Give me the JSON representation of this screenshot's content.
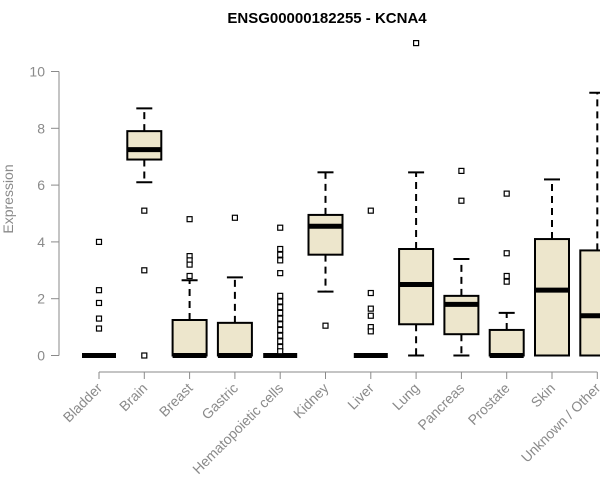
{
  "chart_data": {
    "type": "box",
    "title": "ENSG00000182255 - KCNA4",
    "xlabel": "",
    "ylabel": "Expression",
    "ylim": [
      0,
      10
    ],
    "yticks": [
      0,
      2,
      4,
      6,
      8,
      10
    ],
    "grid": false,
    "legend": "none",
    "colors": {
      "box_fill": "#ede6cc",
      "box_stroke": "#000000",
      "axis": "#8a8a8a"
    },
    "categories": [
      "Bladder",
      "Brain",
      "Breast",
      "Gastric",
      "Hematopoietic cells",
      "Kidney",
      "Liver",
      "Lung",
      "Pancreas",
      "Prostate",
      "Skin",
      "Unknown / Other"
    ],
    "boxes": [
      {
        "label": "Bladder",
        "q1": 0,
        "median": 0,
        "q3": 0,
        "whisker_low": 0,
        "whisker_high": 0,
        "outliers": [
          4.0,
          2.3,
          1.85,
          1.3,
          0.95
        ]
      },
      {
        "label": "Brain",
        "q1": 6.9,
        "median": 7.25,
        "q3": 7.9,
        "whisker_low": 6.1,
        "whisker_high": 8.7,
        "outliers": [
          5.1,
          3.0,
          0
        ]
      },
      {
        "label": "Breast",
        "q1": 0,
        "median": 0,
        "q3": 1.25,
        "whisker_low": 0,
        "whisker_high": 2.65,
        "outliers": [
          4.8,
          3.5,
          3.35,
          3.2,
          2.8
        ]
      },
      {
        "label": "Gastric",
        "q1": 0,
        "median": 0,
        "q3": 1.15,
        "whisker_low": 0,
        "whisker_high": 2.75,
        "outliers": [
          4.85
        ]
      },
      {
        "label": "Hematopoietic cells",
        "q1": 0,
        "median": 0,
        "q3": 0,
        "whisker_low": 0,
        "whisker_high": 0,
        "outliers": [
          4.5,
          3.75,
          3.55,
          3.35,
          2.9,
          2.1,
          1.9,
          1.7,
          1.5,
          1.3,
          1.1,
          0.9,
          0.7,
          0.5,
          0.3,
          0.15
        ]
      },
      {
        "label": "Kidney",
        "q1": 3.55,
        "median": 4.55,
        "q3": 4.95,
        "whisker_low": 2.25,
        "whisker_high": 6.45,
        "outliers": [
          1.05
        ]
      },
      {
        "label": "Liver",
        "q1": 0,
        "median": 0,
        "q3": 0,
        "whisker_low": 0,
        "whisker_high": 0,
        "outliers": [
          5.1,
          2.2,
          1.65,
          1.4,
          1.0,
          0.85
        ]
      },
      {
        "label": "Lung",
        "q1": 1.1,
        "median": 2.5,
        "q3": 3.75,
        "whisker_low": 0,
        "whisker_high": 6.45,
        "outliers": [
          11.0
        ]
      },
      {
        "label": "Pancreas",
        "q1": 0.75,
        "median": 1.8,
        "q3": 2.1,
        "whisker_low": 0,
        "whisker_high": 3.4,
        "outliers": [
          6.5,
          5.45
        ]
      },
      {
        "label": "Prostate",
        "q1": 0,
        "median": 0,
        "q3": 0.9,
        "whisker_low": 0,
        "whisker_high": 1.5,
        "outliers": [
          5.7,
          3.6,
          2.8,
          2.6
        ]
      },
      {
        "label": "Skin",
        "q1": 0,
        "median": 2.3,
        "q3": 4.1,
        "whisker_low": 0,
        "whisker_high": 6.2,
        "outliers": []
      },
      {
        "label": "Unknown / Other",
        "q1": 0,
        "median": 1.4,
        "q3": 3.7,
        "whisker_low": 0,
        "whisker_high": 9.25,
        "outliers": []
      }
    ]
  }
}
